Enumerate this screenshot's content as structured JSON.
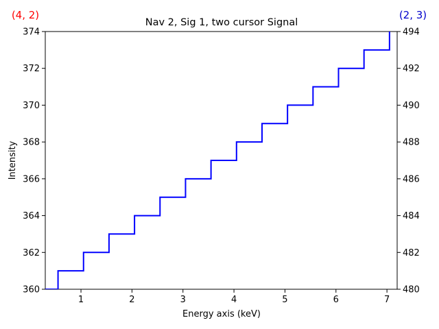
{
  "chart_data": {
    "type": "line",
    "drawstyle": "steps-post",
    "title": "Nav 2, Sig 1, two cursor Signal",
    "xlabel": "Energy axis (keV)",
    "ylabel": "Intensity",
    "xlim": [
      0.3,
      7.2
    ],
    "ylim": [
      360,
      374
    ],
    "y2lim": [
      480,
      494
    ],
    "xticks": [
      1,
      2,
      3,
      4,
      5,
      6,
      7
    ],
    "yticks": [
      360,
      362,
      364,
      366,
      368,
      370,
      372,
      374
    ],
    "y2ticks": [
      480,
      482,
      484,
      486,
      488,
      490,
      492,
      494
    ],
    "grid": false,
    "series": [
      {
        "color": "#0000ff",
        "x": [
          0.3,
          0.55,
          1.05,
          1.55,
          2.05,
          2.55,
          3.05,
          3.55,
          4.05,
          4.55,
          5.05,
          5.55,
          6.05,
          6.55,
          7.05
        ],
        "y": [
          360,
          361,
          362,
          363,
          364,
          365,
          366,
          367,
          368,
          369,
          370,
          371,
          372,
          373,
          374
        ]
      }
    ],
    "corner_labels": {
      "left": {
        "text": "(4, 2)",
        "color": "#ff0000"
      },
      "right": {
        "text": "(2, 3)",
        "color": "#0000cc"
      }
    }
  }
}
